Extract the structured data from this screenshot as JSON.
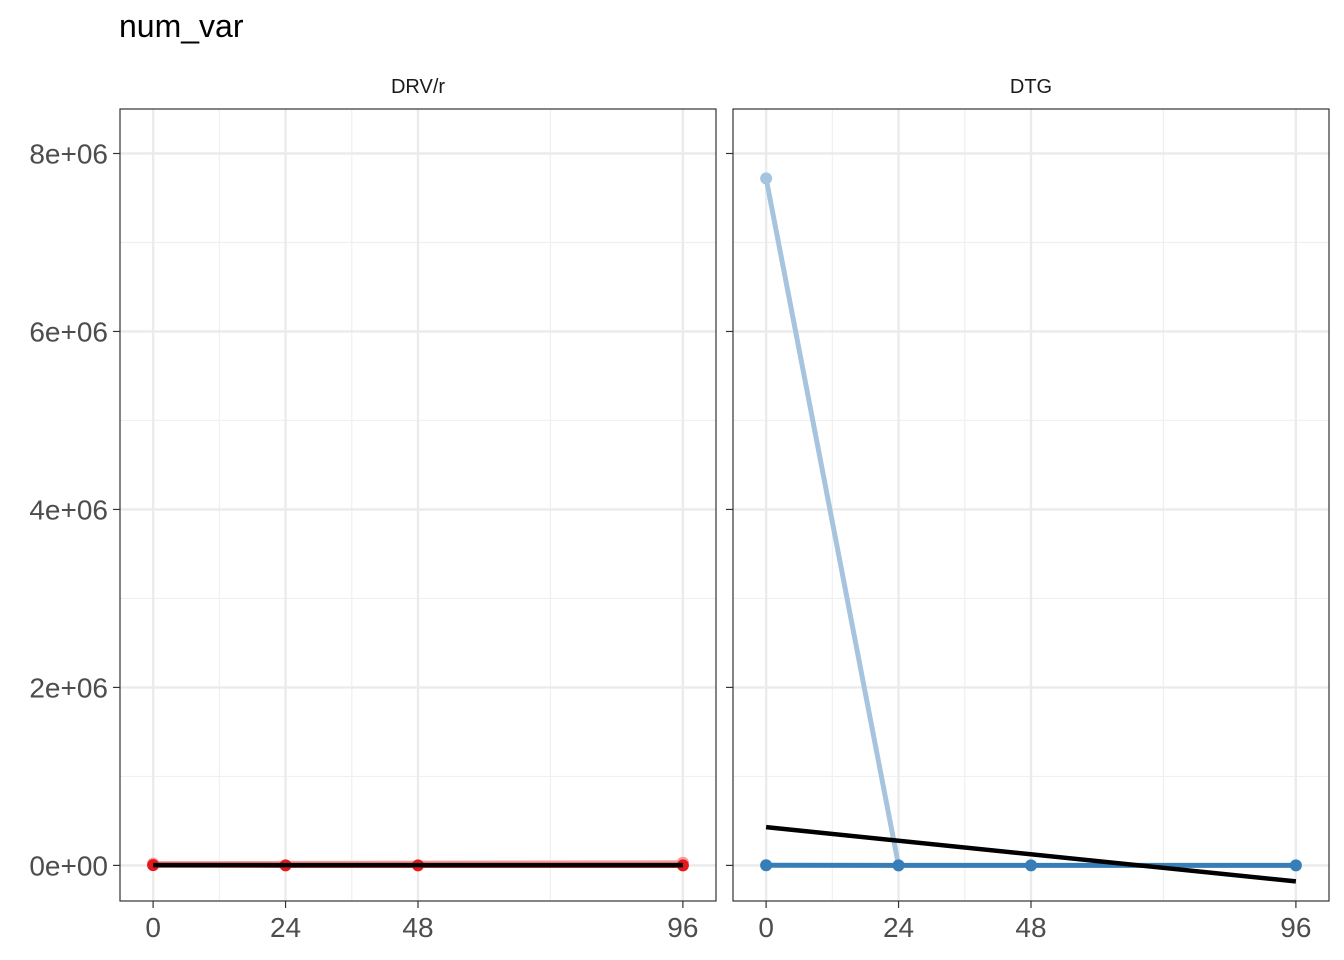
{
  "chart_data": {
    "type": "line",
    "title": "num_var",
    "xlabel": "",
    "ylabel": "",
    "x_ticks": [
      0,
      24,
      48,
      96
    ],
    "xlim": [
      -6,
      102
    ],
    "ylim": [
      -400000,
      8500000
    ],
    "y_ticks": [
      0,
      2000000,
      4000000,
      6000000,
      8000000
    ],
    "y_tick_labels": [
      "0e+00",
      "2e+06",
      "4e+06",
      "6e+06",
      "8e+06"
    ],
    "grid": true,
    "legend": "none",
    "panels": [
      {
        "label": "DRV/r",
        "color": "#e31a1c",
        "light_color": "#fb9a99",
        "series": [
          {
            "role": "light",
            "x": [
              0,
              96
            ],
            "y": [
              20000,
              30000
            ]
          },
          {
            "role": "main",
            "x": [
              0,
              24,
              48,
              96
            ],
            "y": [
              3000,
              500,
              200,
              150
            ]
          }
        ],
        "trend": {
          "x": [
            0,
            96
          ],
          "y": [
            3000,
            3000
          ]
        }
      },
      {
        "label": "DTG",
        "color": "#377eb8",
        "light_color": "#a6c4de",
        "series": [
          {
            "role": "light",
            "x": [
              0,
              24
            ],
            "y": [
              7720000,
              0
            ]
          },
          {
            "role": "main",
            "x": [
              0,
              24,
              48,
              96
            ],
            "y": [
              2000,
              800,
              300,
              100
            ]
          }
        ],
        "trend": {
          "x": [
            0,
            96
          ],
          "y": [
            430000,
            -180000
          ]
        }
      }
    ]
  }
}
